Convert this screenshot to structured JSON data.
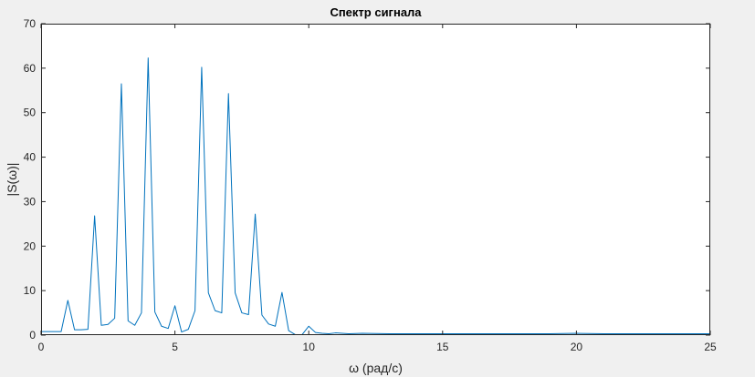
{
  "chart_data": {
    "type": "line",
    "title": "Спектр сигнала",
    "xlabel": "ω (рад/с)",
    "ylabel": "|S(ω)|",
    "xlim": [
      0,
      25
    ],
    "ylim": [
      0,
      70
    ],
    "xticks": [
      0,
      5,
      10,
      15,
      20,
      25
    ],
    "yticks": [
      0,
      10,
      20,
      30,
      40,
      50,
      60,
      70
    ],
    "grid": false,
    "series": [
      {
        "color": "#0072bd",
        "x": [
          0,
          0.25,
          0.5,
          0.75,
          1.0,
          1.25,
          1.5,
          1.75,
          2.0,
          2.25,
          2.5,
          2.75,
          3.0,
          3.25,
          3.5,
          3.75,
          4.0,
          4.25,
          4.5,
          4.75,
          5.0,
          5.25,
          5.5,
          5.75,
          6.0,
          6.25,
          6.5,
          6.75,
          7.0,
          7.25,
          7.5,
          7.75,
          8.0,
          8.25,
          8.5,
          8.75,
          9.0,
          9.25,
          9.5,
          9.75,
          10.0,
          10.25,
          10.5,
          10.75,
          11.0,
          11.5,
          12.0,
          13.0,
          14.0,
          15.0,
          16.0,
          17.0,
          18.0,
          19.0,
          20.0,
          21.0,
          22.0,
          23.0,
          24.0,
          25.0
        ],
        "y": [
          0.8,
          0.8,
          0.8,
          0.8,
          7.8,
          1.2,
          1.2,
          1.3,
          26.8,
          2.2,
          2.4,
          3.8,
          56.5,
          3.2,
          2.2,
          5.0,
          62.3,
          5.2,
          2.0,
          1.5,
          6.6,
          0.7,
          1.3,
          5.5,
          60.2,
          9.5,
          5.5,
          5.0,
          54.3,
          9.5,
          5.0,
          4.6,
          27.2,
          4.5,
          2.5,
          2.0,
          9.6,
          1.0,
          0.1,
          0.1,
          2.0,
          0.6,
          0.4,
          0.3,
          0.5,
          0.3,
          0.4,
          0.3,
          0.3,
          0.3,
          0.3,
          0.3,
          0.3,
          0.3,
          0.4,
          0.3,
          0.3,
          0.3,
          0.3,
          0.3
        ]
      }
    ]
  }
}
